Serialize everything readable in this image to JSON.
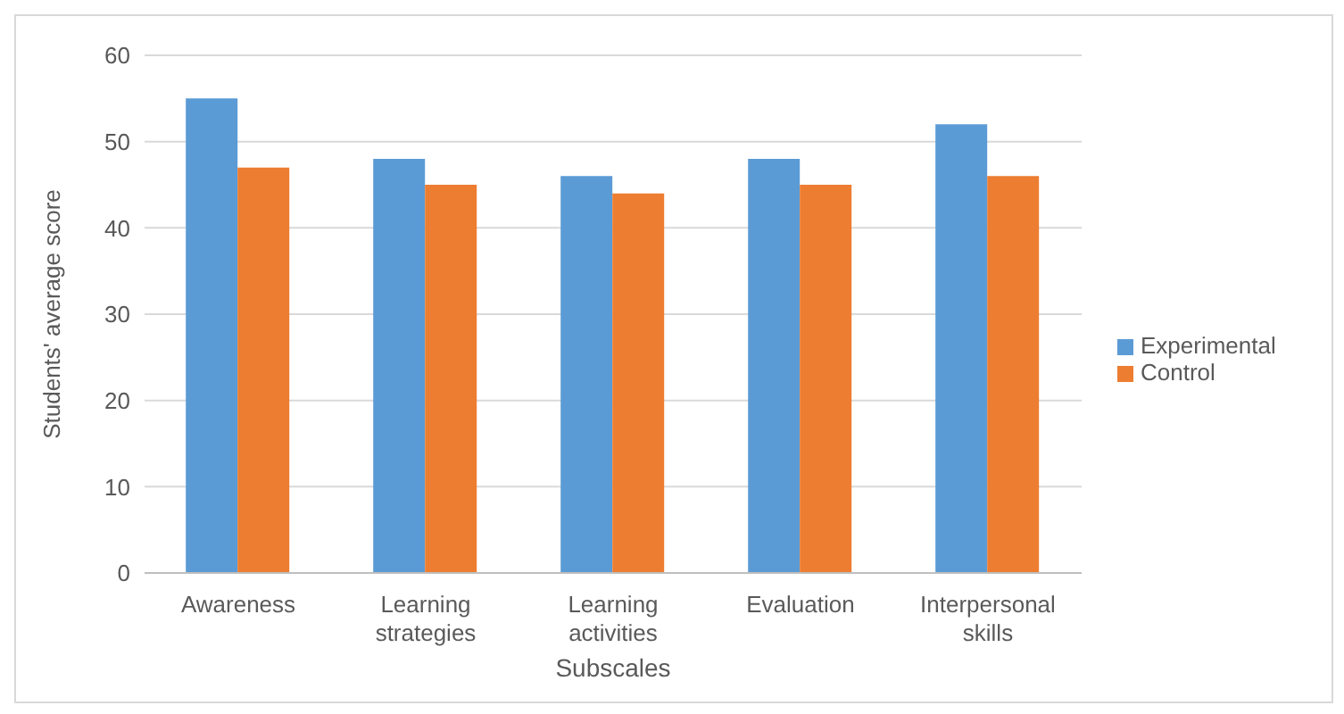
{
  "chart_data": {
    "type": "bar",
    "xlabel": "Subscales",
    "ylabel": "Students' average score",
    "categories": [
      "Awareness",
      "Learning strategies",
      "Learning activities",
      "Evaluation",
      "Interpersonal skills"
    ],
    "series": [
      {
        "name": "Experimental",
        "color": "#5b9bd5",
        "values": [
          55,
          48,
          46,
          48,
          52
        ]
      },
      {
        "name": "Control",
        "color": "#ed7d31",
        "values": [
          47,
          45,
          44,
          45,
          46
        ]
      }
    ],
    "ylim": [
      0,
      60
    ],
    "yticks": [
      0,
      10,
      20,
      30,
      40,
      50,
      60
    ],
    "grid": "y",
    "legend": "right"
  }
}
